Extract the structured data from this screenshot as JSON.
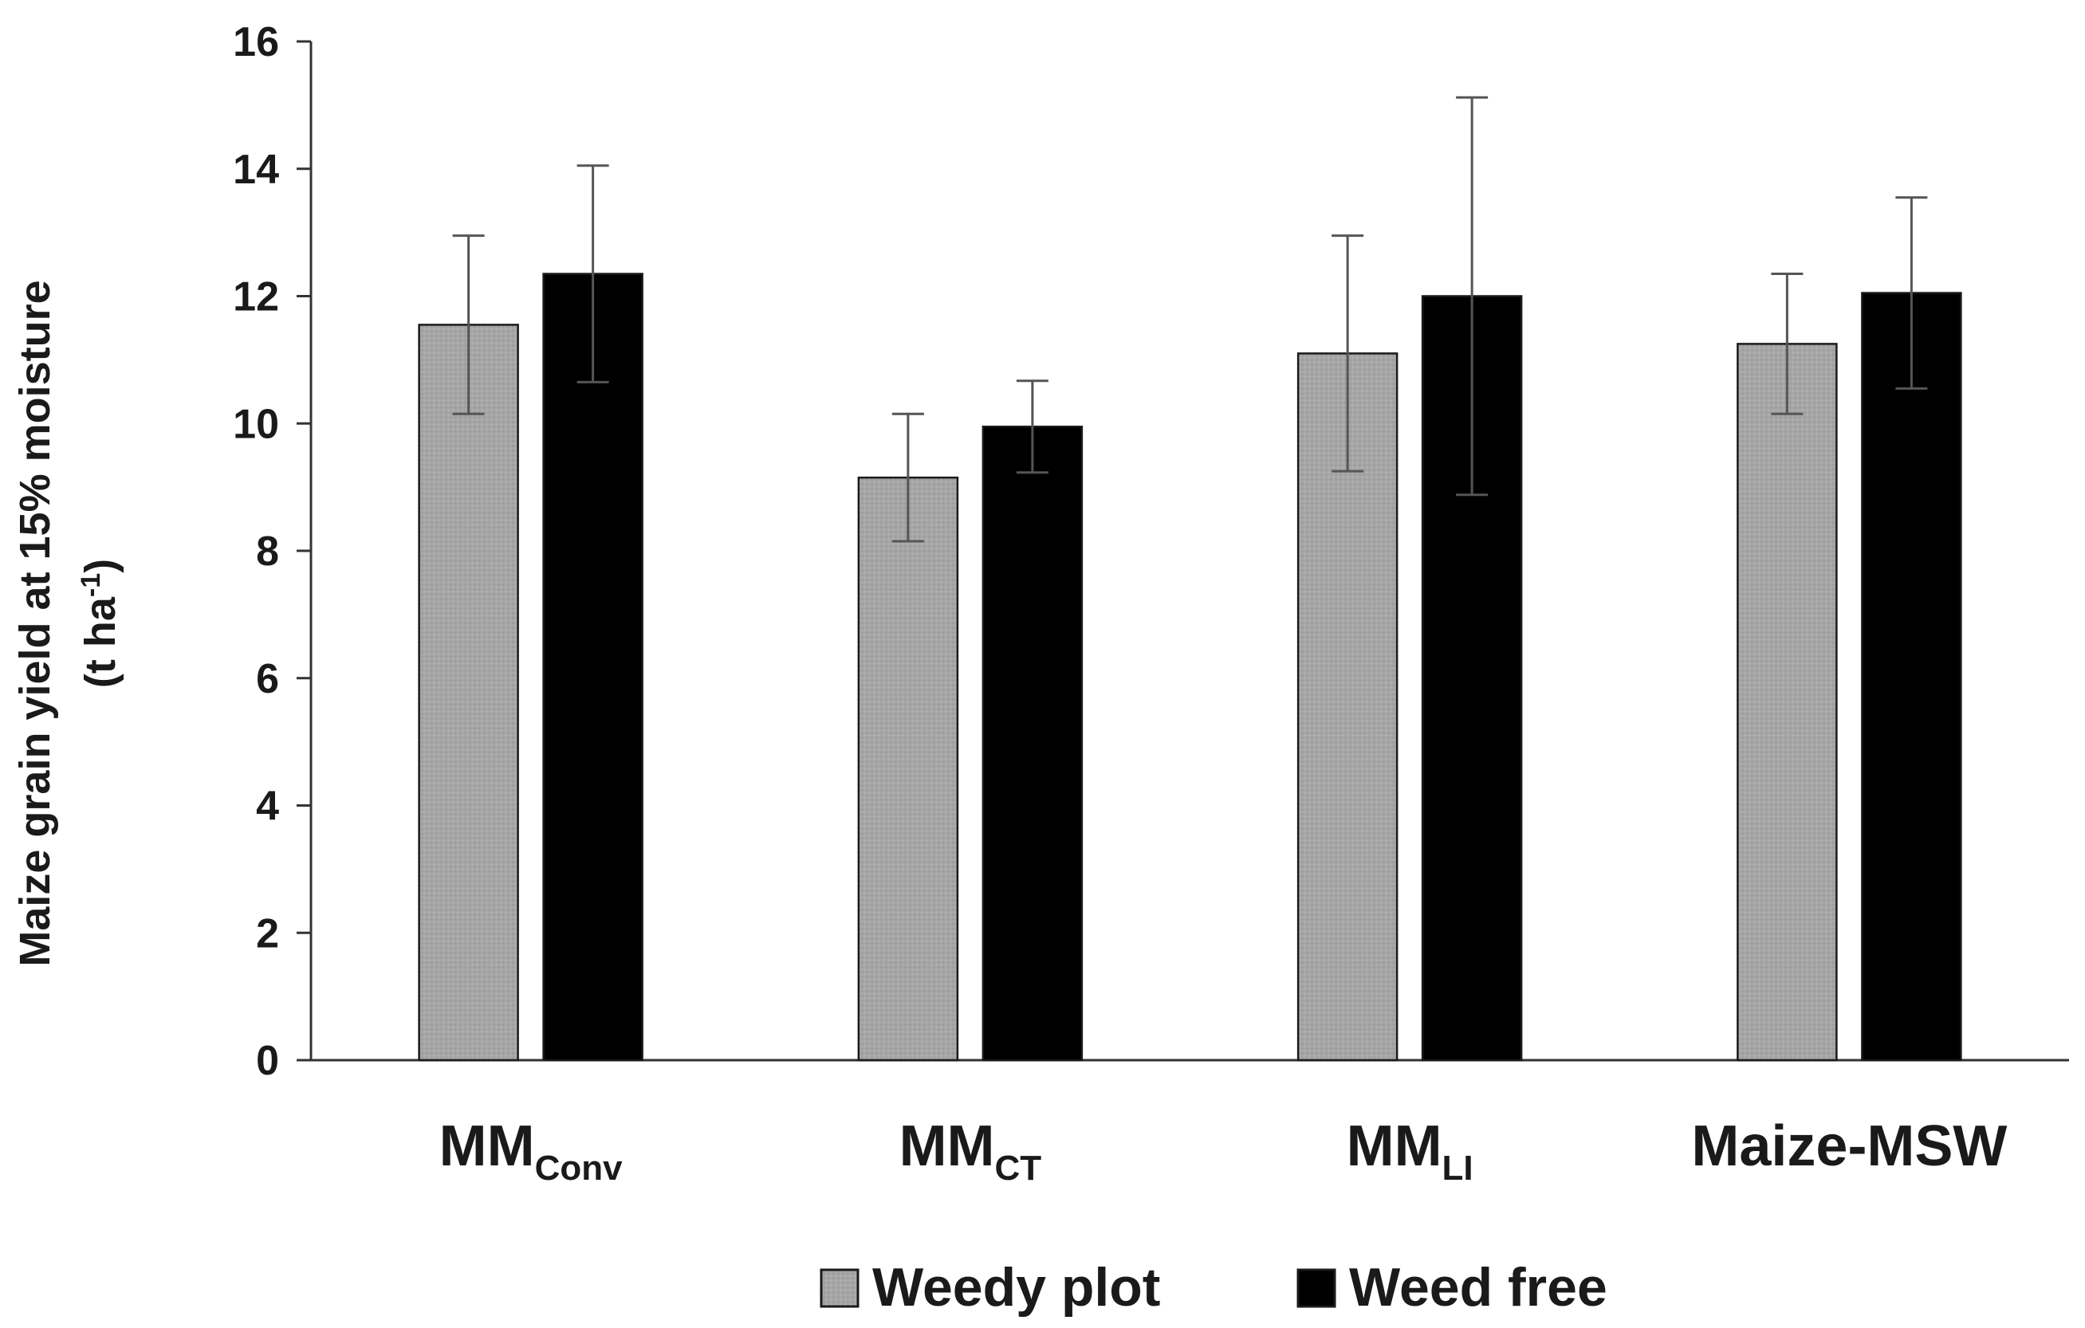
{
  "chart_data": {
    "type": "bar",
    "title": "",
    "ylabel_line1": "Maize grain yield at 15% moisture",
    "ylabel_line2_main": "(t ha",
    "ylabel_line2_sup": "-1",
    "ylabel_line2_end": ")",
    "xlabel": "",
    "ylim": [
      0,
      16
    ],
    "yticks": [
      0,
      2,
      4,
      6,
      8,
      10,
      12,
      14,
      16
    ],
    "categories": [
      {
        "main": "MM",
        "sub": "Conv"
      },
      {
        "main": "MM",
        "sub": "CT"
      },
      {
        "main": "MM",
        "sub": "LI"
      },
      {
        "main": "Maize-MSW",
        "sub": ""
      }
    ],
    "series": [
      {
        "name": "Weedy plot",
        "color": "#a6a6a6",
        "values": [
          11.55,
          9.15,
          11.1,
          11.25
        ],
        "errors": [
          1.4,
          1.0,
          1.85,
          1.1
        ]
      },
      {
        "name": "Weed free",
        "color": "#000000",
        "values": [
          12.35,
          9.95,
          12.0,
          12.05
        ],
        "errors": [
          1.7,
          0.72,
          3.12,
          1.5
        ]
      }
    ],
    "legend_position": "bottom-center"
  }
}
